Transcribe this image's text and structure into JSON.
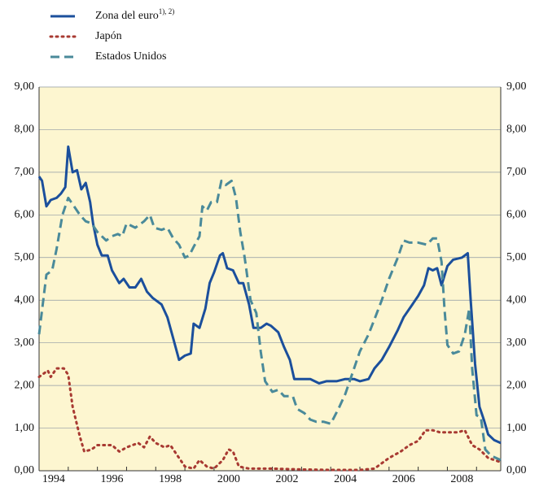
{
  "chart_data": {
    "type": "line",
    "series": [
      {
        "name": "Zona del euro",
        "name_note": "1), 2)",
        "color": "#1b4f9c",
        "dash": "solid",
        "x": [
          1994.0,
          1994.1,
          1994.25,
          1994.4,
          1994.6,
          1994.75,
          1994.9,
          1995.0,
          1995.15,
          1995.3,
          1995.45,
          1995.6,
          1995.75,
          1995.85,
          1996.0,
          1996.15,
          1996.35,
          1996.5,
          1996.75,
          1996.9,
          1997.1,
          1997.3,
          1997.5,
          1997.7,
          1997.9,
          1998.2,
          1998.4,
          1998.6,
          1998.8,
          1999.0,
          1999.2,
          1999.3,
          1999.5,
          1999.7,
          1999.85,
          2000.0,
          2000.2,
          2000.3,
          2000.45,
          2000.65,
          2000.85,
          2001.0,
          2001.2,
          2001.35,
          2001.6,
          2001.8,
          2001.95,
          2002.2,
          2002.4,
          2002.6,
          2002.75,
          2003.0,
          2003.3,
          2003.6,
          2003.85,
          2004.2,
          2004.5,
          2004.8,
          2005.0,
          2005.3,
          2005.5,
          2005.75,
          2006.0,
          2006.3,
          2006.5,
          2006.75,
          2007.0,
          2007.2,
          2007.35,
          2007.5,
          2007.65,
          2007.8,
          2008.0,
          2008.2,
          2008.5,
          2008.7,
          2008.8,
          2008.95,
          2009.1,
          2009.25,
          2009.4,
          2009.6,
          2009.83
        ],
        "values": [
          6.9,
          6.8,
          6.2,
          6.35,
          6.4,
          6.5,
          6.65,
          7.6,
          7.0,
          7.05,
          6.6,
          6.75,
          6.3,
          5.8,
          5.3,
          5.05,
          5.05,
          4.7,
          4.4,
          4.5,
          4.3,
          4.3,
          4.5,
          4.2,
          4.05,
          3.9,
          3.6,
          3.1,
          2.6,
          2.7,
          2.75,
          3.45,
          3.35,
          3.8,
          4.4,
          4.65,
          5.05,
          5.1,
          4.75,
          4.7,
          4.4,
          4.4,
          3.9,
          3.35,
          3.35,
          3.45,
          3.4,
          3.25,
          2.9,
          2.6,
          2.15,
          2.15,
          2.15,
          2.05,
          2.1,
          2.1,
          2.15,
          2.15,
          2.1,
          2.15,
          2.4,
          2.6,
          2.9,
          3.3,
          3.6,
          3.85,
          4.1,
          4.35,
          4.75,
          4.7,
          4.75,
          4.35,
          4.8,
          4.95,
          5.0,
          5.1,
          4.0,
          2.5,
          1.5,
          1.2,
          0.85,
          0.72,
          0.65
        ]
      },
      {
        "name": "Japón",
        "color": "#a83a32",
        "dash": "dotted",
        "x": [
          1994.0,
          1994.3,
          1994.4,
          1994.6,
          1994.85,
          1995.0,
          1995.15,
          1995.4,
          1995.55,
          1995.8,
          1996.0,
          1996.5,
          1996.75,
          1997.0,
          1997.4,
          1997.6,
          1997.8,
          1998.0,
          1998.3,
          1998.5,
          1998.75,
          1999.0,
          1999.3,
          1999.5,
          1999.75,
          2000.0,
          2000.3,
          2000.5,
          2000.65,
          2000.85,
          2001.2,
          2002.0,
          2003.0,
          2004.0,
          2005.0,
          2005.5,
          2006.0,
          2006.4,
          2006.7,
          2007.0,
          2007.25,
          2007.5,
          2007.75,
          2008.0,
          2008.35,
          2008.6,
          2008.85,
          2009.1,
          2009.4,
          2009.83
        ],
        "values": [
          2.2,
          2.35,
          2.2,
          2.4,
          2.4,
          2.25,
          1.5,
          0.8,
          0.45,
          0.5,
          0.6,
          0.6,
          0.45,
          0.55,
          0.65,
          0.55,
          0.8,
          0.65,
          0.55,
          0.6,
          0.35,
          0.1,
          0.05,
          0.25,
          0.1,
          0.05,
          0.25,
          0.5,
          0.45,
          0.1,
          0.05,
          0.05,
          0.03,
          0.02,
          0.02,
          0.05,
          0.3,
          0.45,
          0.6,
          0.7,
          0.95,
          0.95,
          0.9,
          0.9,
          0.9,
          0.95,
          0.6,
          0.5,
          0.3,
          0.2
        ]
      },
      {
        "name": "Estados Unidos",
        "color": "#4a8a9a",
        "dash": "dashed",
        "x": [
          1994.0,
          1994.25,
          1994.45,
          1994.6,
          1994.8,
          1995.0,
          1995.2,
          1995.4,
          1995.6,
          1995.8,
          1996.0,
          1996.3,
          1996.5,
          1996.7,
          1996.85,
          1997.0,
          1997.3,
          1997.6,
          1997.8,
          1997.95,
          1998.2,
          1998.4,
          1998.6,
          1998.8,
          1999.0,
          1999.15,
          1999.3,
          1999.5,
          1999.6,
          1999.75,
          1999.9,
          2000.1,
          2000.25,
          2000.4,
          2000.6,
          2000.75,
          2000.9,
          2001.05,
          2001.25,
          2001.45,
          2001.6,
          2001.75,
          2002.0,
          2002.2,
          2002.4,
          2002.7,
          2002.85,
          2003.1,
          2003.3,
          2003.5,
          2003.75,
          2004.0,
          2004.3,
          2004.5,
          2004.7,
          2005.0,
          2005.3,
          2005.5,
          2005.75,
          2006.0,
          2006.3,
          2006.5,
          2006.7,
          2007.0,
          2007.3,
          2007.5,
          2007.65,
          2007.8,
          2007.9,
          2008.0,
          2008.2,
          2008.4,
          2008.6,
          2008.75,
          2008.85,
          2009.0,
          2009.15,
          2009.3,
          2009.5,
          2009.83
        ],
        "values": [
          3.2,
          4.6,
          4.7,
          5.2,
          6.0,
          6.4,
          6.2,
          6.0,
          5.85,
          5.8,
          5.6,
          5.4,
          5.5,
          5.55,
          5.5,
          5.8,
          5.7,
          5.85,
          6.0,
          5.7,
          5.65,
          5.7,
          5.45,
          5.3,
          5.0,
          5.05,
          5.25,
          5.5,
          6.2,
          6.1,
          6.3,
          6.3,
          6.8,
          6.7,
          6.8,
          6.4,
          5.6,
          5.0,
          4.0,
          3.7,
          2.8,
          2.1,
          1.85,
          1.9,
          1.75,
          1.75,
          1.45,
          1.35,
          1.2,
          1.15,
          1.15,
          1.1,
          1.5,
          1.8,
          2.2,
          2.8,
          3.2,
          3.55,
          4.0,
          4.5,
          5.0,
          5.4,
          5.35,
          5.35,
          5.3,
          5.45,
          5.45,
          4.9,
          3.8,
          2.95,
          2.75,
          2.8,
          3.2,
          3.8,
          2.4,
          1.3,
          1.25,
          0.5,
          0.35,
          0.25
        ]
      }
    ],
    "xlim": [
      1994,
      2009.83
    ],
    "xticks": [
      {
        "value": 1994.5,
        "label": "1994"
      },
      {
        "value": 1996.5,
        "label": "1996"
      },
      {
        "value": 1998.5,
        "label": "1998"
      },
      {
        "value": 2000.5,
        "label": "2000"
      },
      {
        "value": 2002.5,
        "label": "2002"
      },
      {
        "value": 2004.5,
        "label": "2004"
      },
      {
        "value": 2006.5,
        "label": "2006"
      },
      {
        "value": 2008.5,
        "label": "2008"
      }
    ],
    "ylim": [
      0,
      9
    ],
    "yticks": [
      {
        "value": 0,
        "label": "0,00"
      },
      {
        "value": 1,
        "label": "1,00"
      },
      {
        "value": 2,
        "label": "2,00"
      },
      {
        "value": 3,
        "label": "3,00"
      },
      {
        "value": 4,
        "label": "4,00"
      },
      {
        "value": 5,
        "label": "5,00"
      },
      {
        "value": 6,
        "label": "6,00"
      },
      {
        "value": 7,
        "label": "7,00"
      },
      {
        "value": 8,
        "label": "8,00"
      },
      {
        "value": 9,
        "label": "9,00"
      }
    ],
    "grid": true,
    "background": "#fdf6d0"
  }
}
